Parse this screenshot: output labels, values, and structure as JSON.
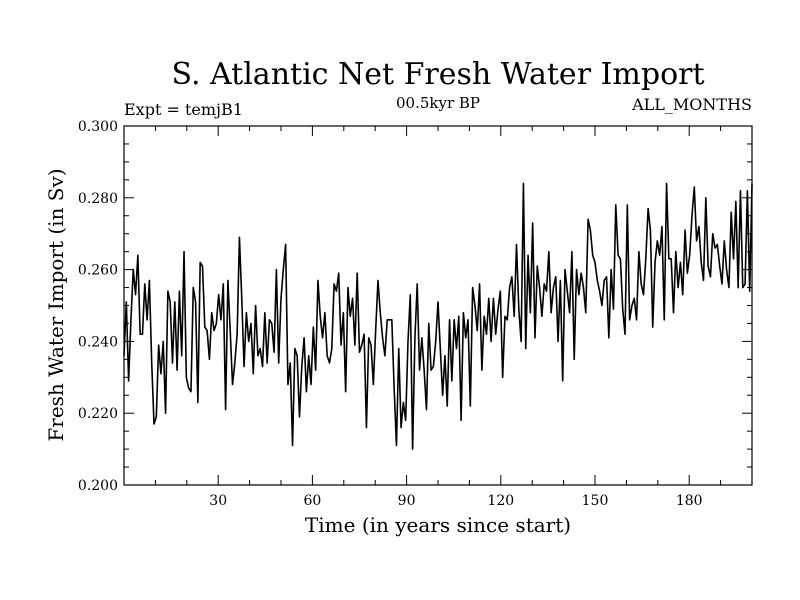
{
  "chart_data": {
    "type": "line",
    "title": "S. Atlantic Net Fresh Water Import",
    "subtitle": "00.5kyr BP",
    "left_label": "Expt = temjB1",
    "right_label": "ALL_MONTHS",
    "xlabel": "Time (in years since start)",
    "ylabel": "Fresh Water Import (in Sv)",
    "xlim": [
      0,
      200
    ],
    "ylim": [
      0.2,
      0.3
    ],
    "xticks": [
      30,
      60,
      90,
      120,
      150,
      180
    ],
    "yticks": [
      "0.200",
      "0.220",
      "0.240",
      "0.260",
      "0.280",
      "0.300"
    ],
    "series": [
      {
        "name": "fresh water import",
        "values": [
          0.236,
          0.251,
          0.229,
          0.246,
          0.26,
          0.253,
          0.264,
          0.242,
          0.242,
          0.256,
          0.246,
          0.257,
          0.234,
          0.217,
          0.219,
          0.239,
          0.231,
          0.24,
          0.22,
          0.254,
          0.251,
          0.234,
          0.251,
          0.232,
          0.254,
          0.236,
          0.265,
          0.23,
          0.227,
          0.226,
          0.255,
          0.251,
          0.223,
          0.262,
          0.261,
          0.244,
          0.243,
          0.235,
          0.248,
          0.243,
          0.245,
          0.253,
          0.246,
          0.256,
          0.221,
          0.257,
          0.243,
          0.228,
          0.234,
          0.242,
          0.269,
          0.252,
          0.233,
          0.248,
          0.24,
          0.245,
          0.231,
          0.25,
          0.236,
          0.238,
          0.233,
          0.248,
          0.234,
          0.246,
          0.245,
          0.237,
          0.26,
          0.234,
          0.252,
          0.26,
          0.267,
          0.228,
          0.234,
          0.211,
          0.238,
          0.236,
          0.219,
          0.233,
          0.241,
          0.226,
          0.236,
          0.228,
          0.244,
          0.232,
          0.257,
          0.247,
          0.241,
          0.248,
          0.236,
          0.234,
          0.238,
          0.256,
          0.254,
          0.259,
          0.239,
          0.248,
          0.226,
          0.255,
          0.247,
          0.252,
          0.239,
          0.259,
          0.237,
          0.239,
          0.242,
          0.216,
          0.241,
          0.239,
          0.228,
          0.243,
          0.257,
          0.248,
          0.241,
          0.236,
          0.246,
          0.246,
          0.246,
          0.227,
          0.211,
          0.238,
          0.216,
          0.223,
          0.218,
          0.24,
          0.253,
          0.21,
          0.241,
          0.256,
          0.232,
          0.241,
          0.232,
          0.221,
          0.245,
          0.232,
          0.233,
          0.24,
          0.251,
          0.238,
          0.225,
          0.236,
          0.222,
          0.246,
          0.229,
          0.246,
          0.238,
          0.247,
          0.218,
          0.248,
          0.241,
          0.246,
          0.222,
          0.255,
          0.25,
          0.243,
          0.256,
          0.232,
          0.247,
          0.242,
          0.252,
          0.24,
          0.252,
          0.242,
          0.249,
          0.254,
          0.23,
          0.247,
          0.246,
          0.255,
          0.258,
          0.247,
          0.267,
          0.249,
          0.24,
          0.284,
          0.238,
          0.264,
          0.248,
          0.273,
          0.241,
          0.261,
          0.255,
          0.247,
          0.256,
          0.254,
          0.265,
          0.248,
          0.255,
          0.258,
          0.24,
          0.257,
          0.229,
          0.26,
          0.254,
          0.248,
          0.265,
          0.235,
          0.26,
          0.253,
          0.259,
          0.255,
          0.248,
          0.274,
          0.271,
          0.264,
          0.262,
          0.257,
          0.254,
          0.25,
          0.257,
          0.258,
          0.241,
          0.26,
          0.249,
          0.278,
          0.264,
          0.263,
          0.249,
          0.242,
          0.278,
          0.246,
          0.25,
          0.252,
          0.246,
          0.265,
          0.256,
          0.253,
          0.263,
          0.277,
          0.271,
          0.244,
          0.262,
          0.268,
          0.264,
          0.272,
          0.246,
          0.284,
          0.263,
          0.263,
          0.248,
          0.265,
          0.255,
          0.262,
          0.253,
          0.271,
          0.259,
          0.264,
          0.275,
          0.283,
          0.268,
          0.272,
          0.262,
          0.257,
          0.28,
          0.261,
          0.258,
          0.27,
          0.266,
          0.267,
          0.261,
          0.256,
          0.268,
          0.26,
          0.255,
          0.276,
          0.263,
          0.279,
          0.255,
          0.282,
          0.255,
          0.256,
          0.282,
          0.254,
          0.284
        ]
      }
    ]
  }
}
